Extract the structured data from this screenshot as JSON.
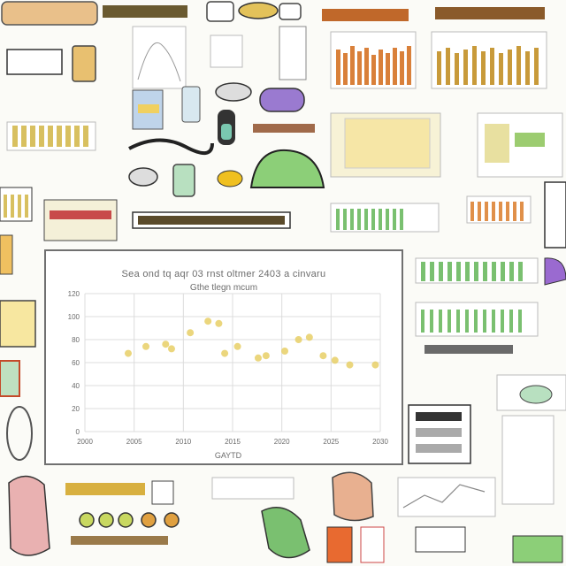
{
  "image": {
    "title": "Sea ond tq aqr 03 rnst oltmer 2403 a cinvaru",
    "subtitle": "Gthe tlegn mcum",
    "xlabel": "GAYTD",
    "colors": {
      "background": "#fbfbf7",
      "panel_border": "#707070",
      "grid": "#dcdcdc",
      "points": "#e8cf66",
      "text": "#6c6c6c"
    }
  },
  "chart_data": {
    "type": "scatter",
    "title": "Sea ond tq aqr 03 rnst oltmer 2403 a cinvaru",
    "subtitle": "Gthe tlegn mcum",
    "xlabel": "GAYTD",
    "ylabel": "",
    "x_ticks": [
      "2000",
      "2005",
      "2010",
      "2015",
      "2020",
      "2025",
      "2030"
    ],
    "y_ticks": [
      "0",
      "20",
      "40",
      "60",
      "80",
      "100",
      "120"
    ],
    "xlim": [
      2000,
      2030
    ],
    "ylim": [
      0,
      120
    ],
    "grid": true,
    "legend": "none",
    "series": [
      {
        "points": [
          [
            2004.4,
            68
          ],
          [
            2006.2,
            74
          ],
          [
            2008.2,
            76
          ],
          [
            2008.8,
            72
          ],
          [
            2010.7,
            86
          ],
          [
            2012.5,
            96
          ],
          [
            2013.6,
            94
          ],
          [
            2014.2,
            68
          ],
          [
            2015.5,
            74
          ],
          [
            2017.6,
            64
          ],
          [
            2018.4,
            66
          ],
          [
            2020.3,
            70
          ],
          [
            2021.7,
            80
          ],
          [
            2022.8,
            82
          ],
          [
            2024.2,
            66
          ],
          [
            2025.4,
            62
          ],
          [
            2026.9,
            58
          ],
          [
            2029.5,
            58
          ]
        ]
      }
    ]
  }
}
